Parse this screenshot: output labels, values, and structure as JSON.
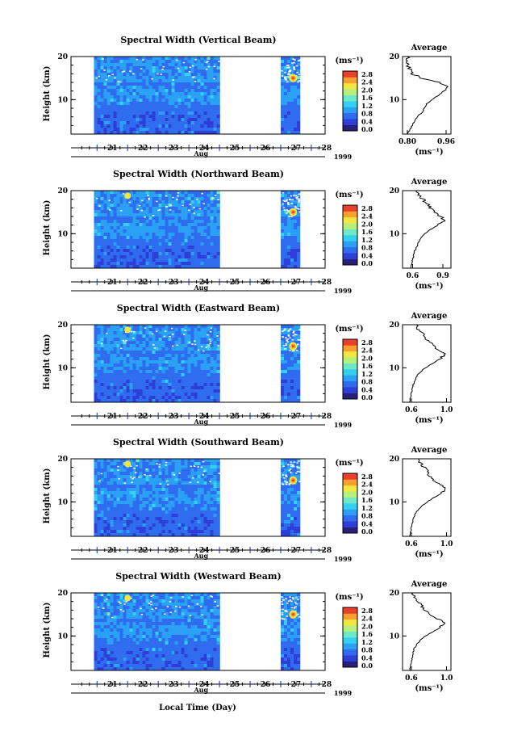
{
  "figure": {
    "bottom_xlabel": "Local Time (Day)",
    "month_label": "Aug",
    "year_label": "1999"
  },
  "colorbar": {
    "unit_label": "(ms⁻¹)",
    "tick_labels": [
      "0.0",
      "0.4",
      "0.8",
      "1.2",
      "1.6",
      "2.0",
      "2.4",
      "2.8"
    ],
    "colors": [
      "#2a1f78",
      "#2d3fd6",
      "#2f6cf0",
      "#2aa1f5",
      "#35d0f0",
      "#6fe8c8",
      "#b5f07a",
      "#f2e640",
      "#f7a030",
      "#e8402a"
    ]
  },
  "chart_data": [
    {
      "type": "heatmap",
      "title": "Spectral Width (Vertical Beam)",
      "ylabel": "Height (km)",
      "xlabel": "",
      "x_tick_labels": [
        "21",
        "22",
        "23",
        "24",
        "25",
        "26",
        "27",
        "28"
      ],
      "y_tick_labels": [
        "10",
        "20"
      ],
      "ylim": [
        2,
        20
      ],
      "data_segments_days": [
        [
          20.9,
          25.0
        ],
        [
          27.0,
          27.6
        ]
      ],
      "profile": {
        "title": "Average",
        "xlabel": "(ms⁻¹)",
        "xticks": [
          "0.80",
          "0.96"
        ],
        "xlim": [
          0.78,
          0.98
        ],
        "yticks": [
          "10",
          "20"
        ],
        "height_km": [
          2,
          3,
          4,
          5,
          6,
          7,
          8,
          9,
          10,
          11,
          12,
          13,
          14,
          15,
          16,
          17,
          18,
          19,
          20
        ],
        "width_ms": [
          0.8,
          0.81,
          0.82,
          0.83,
          0.84,
          0.86,
          0.87,
          0.88,
          0.9,
          0.93,
          0.95,
          0.96,
          0.93,
          0.86,
          0.82,
          0.81,
          0.8,
          0.8,
          0.8
        ]
      }
    },
    {
      "type": "heatmap",
      "title": "Spectral Width (Northward Beam)",
      "ylabel": "Height (km)",
      "xlabel": "",
      "x_tick_labels": [
        "21",
        "22",
        "23",
        "24",
        "25",
        "26",
        "27",
        "28"
      ],
      "y_tick_labels": [
        "10",
        "20"
      ],
      "ylim": [
        2,
        20
      ],
      "data_segments_days": [
        [
          20.9,
          25.0
        ],
        [
          27.0,
          27.6
        ]
      ],
      "profile": {
        "title": "Average",
        "xlabel": "(ms⁻¹)",
        "xticks": [
          "0.6",
          "0.9"
        ],
        "xlim": [
          0.5,
          0.98
        ],
        "yticks": [
          "10",
          "20"
        ],
        "height_km": [
          2,
          3,
          4,
          5,
          6,
          7,
          8,
          9,
          10,
          11,
          12,
          13,
          14,
          15,
          16,
          17,
          18,
          19,
          20
        ],
        "width_ms": [
          0.58,
          0.59,
          0.6,
          0.61,
          0.62,
          0.64,
          0.66,
          0.68,
          0.72,
          0.78,
          0.85,
          0.92,
          0.88,
          0.83,
          0.78,
          0.74,
          0.7,
          0.66,
          0.64
        ]
      }
    },
    {
      "type": "heatmap",
      "title": "Spectral Width (Eastward Beam)",
      "ylabel": "Height (km)",
      "xlabel": "",
      "x_tick_labels": [
        "21",
        "22",
        "23",
        "24",
        "25",
        "26",
        "27",
        "28"
      ],
      "y_tick_labels": [
        "10",
        "20"
      ],
      "ylim": [
        2,
        20
      ],
      "data_segments_days": [
        [
          20.9,
          25.0
        ],
        [
          27.0,
          27.6
        ]
      ],
      "profile": {
        "title": "Average",
        "xlabel": "(ms⁻¹)",
        "xticks": [
          "0.6",
          "1.0"
        ],
        "xlim": [
          0.5,
          1.05
        ],
        "yticks": [
          "10",
          "20"
        ],
        "height_km": [
          2,
          3,
          4,
          5,
          6,
          7,
          8,
          9,
          10,
          11,
          12,
          13,
          14,
          15,
          16,
          17,
          18,
          19,
          20
        ],
        "width_ms": [
          0.58,
          0.59,
          0.6,
          0.61,
          0.62,
          0.64,
          0.66,
          0.7,
          0.76,
          0.84,
          0.92,
          0.98,
          0.92,
          0.85,
          0.8,
          0.76,
          0.72,
          0.68,
          0.66
        ]
      }
    },
    {
      "type": "heatmap",
      "title": "Spectral Width (Southward Beam)",
      "ylabel": "Height (km)",
      "xlabel": "",
      "x_tick_labels": [
        "21",
        "22",
        "23",
        "24",
        "25",
        "26",
        "27",
        "28"
      ],
      "y_tick_labels": [
        "10",
        "20"
      ],
      "ylim": [
        2,
        20
      ],
      "data_segments_days": [
        [
          20.9,
          25.0
        ],
        [
          27.0,
          27.6
        ]
      ],
      "profile": {
        "title": "Average",
        "xlabel": "(ms⁻¹)",
        "xticks": [
          "0.6",
          "1.0"
        ],
        "xlim": [
          0.5,
          1.05
        ],
        "yticks": [
          "10",
          "20"
        ],
        "height_km": [
          2,
          3,
          4,
          5,
          6,
          7,
          8,
          9,
          10,
          11,
          12,
          13,
          14,
          15,
          16,
          17,
          18,
          19,
          20
        ],
        "width_ms": [
          0.58,
          0.59,
          0.6,
          0.61,
          0.62,
          0.64,
          0.67,
          0.72,
          0.78,
          0.86,
          0.94,
          0.99,
          0.93,
          0.86,
          0.81,
          0.78,
          0.75,
          0.7,
          0.68
        ]
      }
    },
    {
      "type": "heatmap",
      "title": "Spectral Width (Westward Beam)",
      "ylabel": "Height (km)",
      "xlabel": "",
      "x_tick_labels": [
        "21",
        "22",
        "23",
        "24",
        "25",
        "26",
        "27",
        "28"
      ],
      "y_tick_labels": [
        "10",
        "20"
      ],
      "ylim": [
        2,
        20
      ],
      "data_segments_days": [
        [
          20.9,
          25.0
        ],
        [
          27.0,
          27.6
        ]
      ],
      "profile": {
        "title": "Average",
        "xlabel": "(ms⁻¹)",
        "xticks": [
          "0.6",
          "1.0"
        ],
        "xlim": [
          0.5,
          1.05
        ],
        "yticks": [
          "10",
          "20"
        ],
        "height_km": [
          2,
          3,
          4,
          5,
          6,
          7,
          8,
          9,
          10,
          11,
          12,
          13,
          14,
          15,
          16,
          17,
          18,
          19,
          20
        ],
        "width_ms": [
          0.58,
          0.59,
          0.6,
          0.61,
          0.62,
          0.63,
          0.66,
          0.7,
          0.76,
          0.85,
          0.93,
          0.98,
          0.9,
          0.82,
          0.76,
          0.72,
          0.68,
          0.64,
          0.62
        ]
      }
    }
  ]
}
